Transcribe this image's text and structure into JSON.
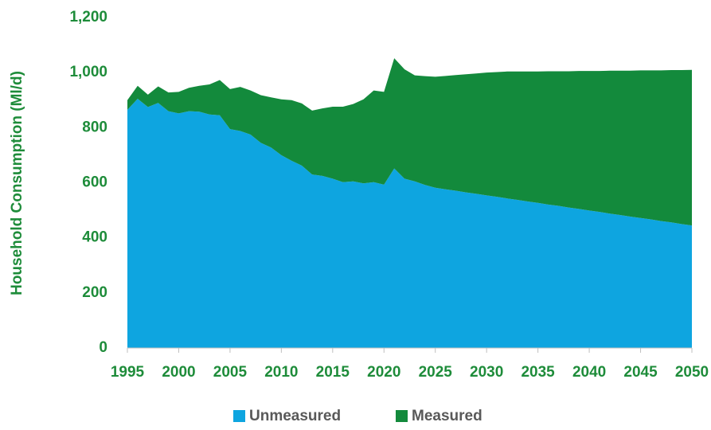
{
  "chart_data": {
    "type": "stacked_area",
    "y_axis_label": "Household Consumption (Ml/d)",
    "x": [
      1995,
      1996,
      1997,
      1998,
      1999,
      2000,
      2001,
      2002,
      2003,
      2004,
      2005,
      2006,
      2007,
      2008,
      2009,
      2010,
      2011,
      2012,
      2013,
      2014,
      2015,
      2016,
      2017,
      2018,
      2019,
      2020,
      2021,
      2022,
      2023,
      2024,
      2025,
      2026,
      2027,
      2028,
      2029,
      2030,
      2031,
      2032,
      2033,
      2034,
      2035,
      2036,
      2037,
      2038,
      2039,
      2040,
      2041,
      2042,
      2043,
      2044,
      2045,
      2046,
      2047,
      2048,
      2049,
      2050
    ],
    "series": [
      {
        "name": "Unmeasured",
        "color": "#0ea5e0",
        "values": [
          865,
          905,
          875,
          890,
          860,
          852,
          860,
          858,
          848,
          845,
          795,
          788,
          775,
          745,
          728,
          700,
          680,
          662,
          630,
          625,
          615,
          602,
          605,
          598,
          602,
          593,
          652,
          615,
          605,
          592,
          582,
          576,
          571,
          565,
          560,
          554,
          549,
          543,
          538,
          532,
          527,
          521,
          516,
          510,
          505,
          499,
          494,
          488,
          483,
          477,
          472,
          467,
          461,
          456,
          450,
          445
        ]
      },
      {
        "name": "Measured",
        "color": "#138a3c",
        "values": [
          35,
          47,
          45,
          60,
          68,
          78,
          85,
          94,
          109,
          128,
          145,
          160,
          160,
          173,
          182,
          203,
          220,
          226,
          232,
          245,
          261,
          274,
          281,
          305,
          333,
          337,
          400,
          397,
          385,
          395,
          403,
          412,
          420,
          429,
          437,
          446,
          453,
          461,
          466,
          472,
          477,
          484,
          489,
          495,
          501,
          507,
          512,
          519,
          524,
          530,
          536,
          541,
          547,
          553,
          559,
          565
        ]
      }
    ],
    "xlim": [
      1995,
      2050
    ],
    "xticks": [
      1995,
      2000,
      2005,
      2010,
      2015,
      2020,
      2025,
      2030,
      2035,
      2040,
      2045,
      2050
    ],
    "ylim": [
      0,
      1200
    ],
    "yticks": [
      0,
      200,
      400,
      600,
      800,
      {
        "value": 1000,
        "label": "1,000"
      },
      {
        "value": 1200,
        "label": "1,200"
      }
    ],
    "grid": false,
    "legend": "bottom"
  }
}
